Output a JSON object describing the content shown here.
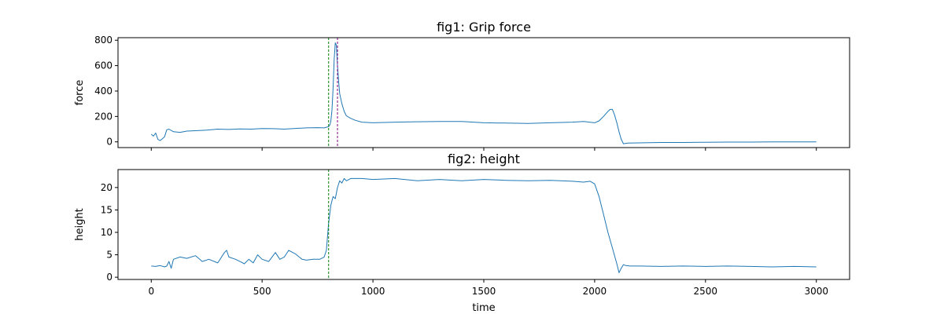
{
  "chart_data": [
    {
      "type": "line",
      "title": "fig1: Grip force",
      "xlabel": "",
      "ylabel": "force",
      "xlim": [
        -150,
        3150
      ],
      "ylim": [
        -45,
        820
      ],
      "xticks": [
        0,
        500,
        1000,
        1500,
        2000,
        2500,
        3000
      ],
      "xtick_labels_visible": false,
      "yticks": [
        0,
        200,
        400,
        600,
        800
      ],
      "grid": false,
      "colors": {
        "series": "#1f77b4",
        "vline_green": "#008000",
        "vline_purple": "#800080"
      },
      "vlines": [
        {
          "x": 800,
          "color": "#008000",
          "style": "dashed"
        },
        {
          "x": 840,
          "color": "#800080",
          "style": "dashed"
        }
      ],
      "series": [
        {
          "color": "#1f77b4",
          "x": [
            0,
            10,
            20,
            30,
            40,
            50,
            60,
            70,
            80,
            100,
            130,
            160,
            200,
            250,
            300,
            350,
            400,
            450,
            500,
            550,
            600,
            650,
            700,
            750,
            780,
            790,
            800,
            805,
            810,
            815,
            820,
            825,
            830,
            835,
            840,
            845,
            850,
            860,
            870,
            880,
            900,
            920,
            950,
            1000,
            1100,
            1200,
            1300,
            1400,
            1500,
            1600,
            1700,
            1800,
            1900,
            1950,
            2000,
            2020,
            2040,
            2060,
            2070,
            2080,
            2090,
            2100,
            2110,
            2120,
            2130,
            2150,
            2200,
            2300,
            2400,
            2500,
            2600,
            2700,
            2800,
            2900,
            3000
          ],
          "y": [
            60,
            45,
            70,
            20,
            10,
            25,
            40,
            95,
            100,
            80,
            75,
            85,
            88,
            92,
            100,
            98,
            102,
            100,
            105,
            104,
            100,
            106,
            110,
            112,
            110,
            115,
            120,
            130,
            160,
            250,
            420,
            650,
            780,
            760,
            600,
            480,
            380,
            300,
            240,
            205,
            185,
            170,
            155,
            150,
            155,
            158,
            160,
            160,
            150,
            148,
            145,
            150,
            155,
            160,
            150,
            165,
            200,
            240,
            255,
            255,
            210,
            150,
            80,
            20,
            -15,
            -10,
            -8,
            -5,
            -5,
            -3,
            -2,
            -2,
            0,
            0,
            0
          ]
        }
      ]
    },
    {
      "type": "line",
      "title": "fig2: height",
      "xlabel": "time",
      "ylabel": "height",
      "xlim": [
        -150,
        3150
      ],
      "ylim": [
        -0.5,
        24
      ],
      "xticks": [
        0,
        500,
        1000,
        1500,
        2000,
        2500,
        3000
      ],
      "yticks": [
        0,
        5,
        10,
        15,
        20
      ],
      "grid": false,
      "colors": {
        "series": "#1f77b4",
        "vline_green": "#008000"
      },
      "vlines": [
        {
          "x": 800,
          "color": "#008000",
          "style": "dashed"
        }
      ],
      "series": [
        {
          "color": "#1f77b4",
          "x": [
            0,
            20,
            40,
            60,
            70,
            80,
            90,
            100,
            130,
            160,
            200,
            230,
            260,
            300,
            330,
            340,
            350,
            380,
            400,
            420,
            440,
            460,
            480,
            500,
            530,
            560,
            580,
            600,
            620,
            650,
            680,
            700,
            730,
            760,
            780,
            790,
            800,
            810,
            820,
            830,
            840,
            850,
            860,
            870,
            880,
            900,
            950,
            1000,
            1100,
            1200,
            1300,
            1400,
            1500,
            1600,
            1700,
            1800,
            1900,
            1950,
            1980,
            2000,
            2020,
            2040,
            2060,
            2080,
            2100,
            2110,
            2120,
            2130,
            2140,
            2160,
            2200,
            2300,
            2400,
            2500,
            2600,
            2700,
            2800,
            2900,
            3000
          ],
          "y": [
            2.5,
            2.4,
            2.6,
            2.3,
            2.5,
            3.5,
            2.0,
            4.0,
            4.5,
            4.2,
            4.8,
            3.5,
            4.0,
            3.2,
            5.5,
            6.0,
            4.5,
            4.0,
            3.5,
            3.0,
            4.0,
            3.2,
            5.0,
            4.0,
            3.5,
            5.5,
            4.0,
            4.5,
            6.0,
            5.2,
            4.0,
            3.8,
            4.0,
            4.0,
            4.5,
            6.0,
            12.0,
            16.0,
            18.0,
            17.5,
            20.0,
            21.5,
            21.0,
            22.0,
            21.5,
            22.0,
            22.0,
            21.8,
            22.0,
            21.5,
            21.8,
            21.5,
            21.8,
            21.6,
            21.5,
            21.6,
            21.4,
            21.2,
            21.4,
            20.8,
            18.0,
            14.0,
            10.0,
            6.5,
            3.0,
            1.0,
            2.0,
            2.8,
            2.6,
            2.5,
            2.5,
            2.4,
            2.5,
            2.4,
            2.5,
            2.4,
            2.3,
            2.4,
            2.3
          ]
        }
      ]
    }
  ]
}
